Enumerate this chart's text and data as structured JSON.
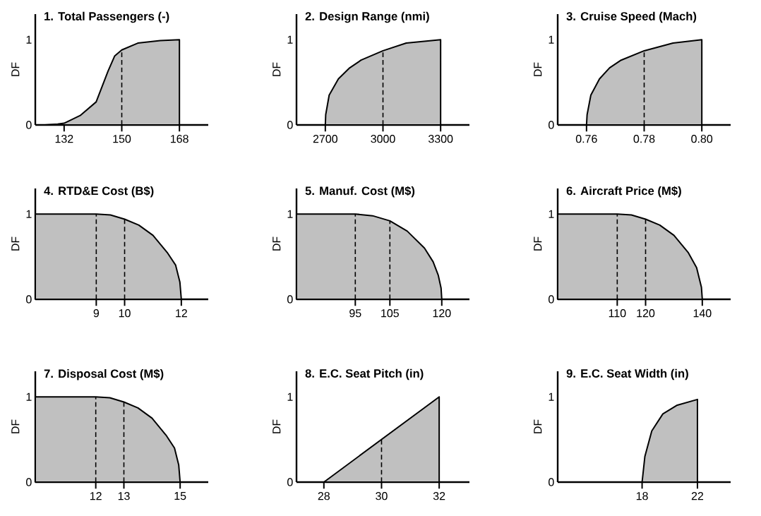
{
  "chart_data": [
    {
      "type": "area",
      "title": "1. Total Passengers (-)",
      "ylabel": "DF",
      "color": "#c0c0c0",
      "x": [
        126,
        130,
        132,
        137,
        142,
        145.7,
        147.8,
        150,
        155,
        162,
        168
      ],
      "values": [
        0,
        0.01,
        0.02,
        0.11,
        0.27,
        0.63,
        0.81,
        0.88,
        0.96,
        0.99,
        1
      ],
      "xlim": [
        123,
        177
      ],
      "ylim": [
        0,
        1.3
      ],
      "xticks": [
        132,
        150,
        168
      ],
      "yticks": [
        0,
        1
      ],
      "ref_lines": [
        {
          "axis": "x",
          "value": 150,
          "line_style": "dashed"
        }
      ]
    },
    {
      "type": "area",
      "title": "2. Design Range (nmi)",
      "ylabel": "DF",
      "color": "#c0c0c0",
      "x": [
        2700,
        2702,
        2720,
        2768,
        2827,
        2886,
        3000,
        3121,
        3300
      ],
      "values": [
        0,
        0.12,
        0.35,
        0.54,
        0.67,
        0.76,
        0.87,
        0.96,
        1
      ],
      "xlim": [
        2550,
        3450
      ],
      "ylim": [
        0,
        1.3
      ],
      "xticks": [
        2700,
        3000,
        3300
      ],
      "yticks": [
        0,
        1
      ],
      "ref_lines": [
        {
          "axis": "x",
          "value": 3000,
          "line_style": "dashed"
        }
      ]
    },
    {
      "type": "area",
      "title": "3. Cruise Speed (Mach)",
      "ylabel": "DF",
      "color": "#c0c0c0",
      "x": [
        0.76,
        0.7602,
        0.7615,
        0.7645,
        0.768,
        0.772,
        0.78,
        0.79,
        0.8
      ],
      "values": [
        0,
        0.12,
        0.35,
        0.54,
        0.67,
        0.76,
        0.87,
        0.96,
        1
      ],
      "xlim": [
        0.75,
        0.81
      ],
      "ylim": [
        0,
        1.3
      ],
      "xticks": [
        0.76,
        0.78,
        {
          "value": 0.8,
          "label": "0.80"
        }
      ],
      "yticks": [
        0,
        1
      ],
      "ref_lines": [
        {
          "axis": "x",
          "value": 0.78,
          "line_style": "dashed"
        }
      ]
    },
    {
      "type": "area",
      "title": "4. RTD&E Cost (B$)",
      "ylabel": "DF",
      "color": "#c0c0c0",
      "x": [
        6.85,
        9,
        9.5,
        10,
        10.5,
        11,
        11.5,
        11.8,
        11.95,
        12
      ],
      "values": [
        1,
        1,
        0.99,
        0.94,
        0.87,
        0.75,
        0.55,
        0.4,
        0.2,
        0
      ],
      "xlim": [
        6.85,
        12.95
      ],
      "ylim": [
        0,
        1.3
      ],
      "xticks": [
        9,
        10,
        12
      ],
      "yticks": [
        0,
        1
      ],
      "ref_lines": [
        {
          "axis": "x",
          "value": 9,
          "line_style": "dashed"
        },
        {
          "axis": "x",
          "value": 10,
          "line_style": "dashed"
        }
      ]
    },
    {
      "type": "area",
      "title": "5. Manuf. Cost (M$)",
      "ylabel": "DF",
      "color": "#c0c0c0",
      "x": [
        78,
        95,
        100,
        105,
        110,
        115,
        117.5,
        119,
        119.8,
        120
      ],
      "values": [
        1,
        1,
        0.98,
        0.92,
        0.8,
        0.6,
        0.44,
        0.28,
        0.13,
        0
      ],
      "xlim": [
        78,
        128
      ],
      "ylim": [
        0,
        1.3
      ],
      "xticks": [
        95,
        105,
        120
      ],
      "yticks": [
        0,
        1
      ],
      "ref_lines": [
        {
          "axis": "x",
          "value": 95,
          "line_style": "dashed"
        },
        {
          "axis": "x",
          "value": 105,
          "line_style": "dashed"
        }
      ]
    },
    {
      "type": "area",
      "title": "6. Aircraft Price (M$)",
      "ylabel": "DF",
      "color": "#c0c0c0",
      "x": [
        89,
        110,
        115,
        120,
        125,
        130,
        135,
        138,
        139.7,
        140
      ],
      "values": [
        1,
        1,
        0.99,
        0.94,
        0.87,
        0.75,
        0.55,
        0.37,
        0.14,
        0
      ],
      "xlim": [
        89,
        150
      ],
      "ylim": [
        0,
        1.3
      ],
      "xticks": [
        110,
        120,
        140
      ],
      "yticks": [
        0,
        1
      ],
      "ref_lines": [
        {
          "axis": "x",
          "value": 110,
          "line_style": "dashed"
        },
        {
          "axis": "x",
          "value": 120,
          "line_style": "dashed"
        }
      ]
    },
    {
      "type": "area",
      "title": "7. Disposal Cost (M$)",
      "ylabel": "DF",
      "color": "#c0c0c0",
      "x": [
        9.85,
        12,
        12.5,
        13,
        13.5,
        14,
        14.5,
        14.8,
        14.95,
        15
      ],
      "values": [
        1,
        1,
        0.99,
        0.94,
        0.87,
        0.75,
        0.55,
        0.4,
        0.2,
        0
      ],
      "xlim": [
        9.85,
        16
      ],
      "ylim": [
        0,
        1.3
      ],
      "xticks": [
        12,
        13,
        15
      ],
      "yticks": [
        0,
        1
      ],
      "ref_lines": [
        {
          "axis": "x",
          "value": 12,
          "line_style": "dashed"
        },
        {
          "axis": "x",
          "value": 13,
          "line_style": "dashed"
        }
      ]
    },
    {
      "type": "area",
      "title": "8. E.C. Seat Pitch (in)",
      "ylabel": "DF",
      "color": "#c0c0c0",
      "x": [
        28,
        32
      ],
      "values": [
        0,
        1
      ],
      "xlim": [
        27.05,
        33.05
      ],
      "ylim": [
        0,
        1.3
      ],
      "xticks": [
        28,
        30,
        32
      ],
      "yticks": [
        0,
        1
      ],
      "ref_lines": [
        {
          "axis": "x",
          "value": 30,
          "line_style": "dashed"
        }
      ]
    },
    {
      "type": "area",
      "title": "9. E.C. Seat Width (in)",
      "ylabel": "DF",
      "color": "#c0c0c0",
      "x": [
        18,
        18.2,
        18.7,
        19.5,
        20.5,
        22
      ],
      "values": [
        0,
        0.3,
        0.6,
        0.8,
        0.9,
        0.97
      ],
      "xlim": [
        11.9,
        24.4
      ],
      "ylim": [
        0,
        1.3
      ],
      "xticks": [
        18,
        22
      ],
      "yticks": [
        0,
        1
      ]
    }
  ]
}
